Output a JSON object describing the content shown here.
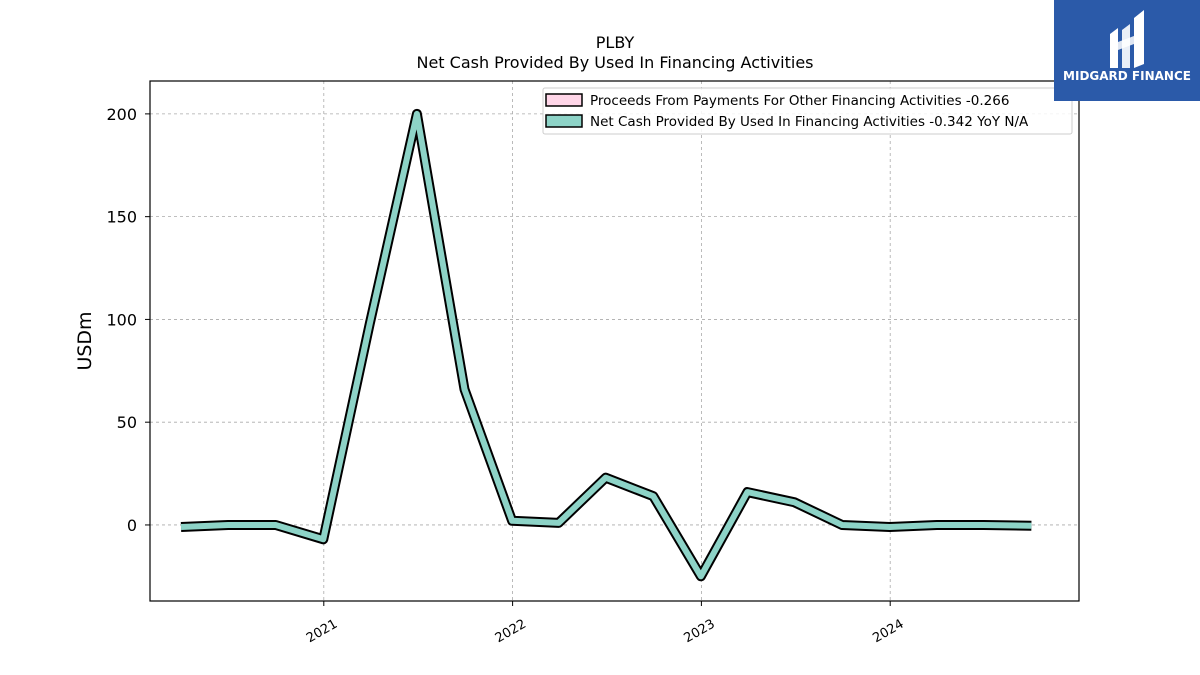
{
  "header": {
    "ticker": "PLBY",
    "subtitle": "Net Cash Provided By Used In Financing Activities"
  },
  "logo": {
    "text": "MIDGARD FINANCE",
    "bg_color": "#2b5aa9"
  },
  "chart_data": {
    "type": "line",
    "title": "PLBY",
    "subtitle": "Net Cash Provided By Used In Financing Activities",
    "xlabel": "",
    "ylabel": "USDm",
    "ylim": [
      -37,
      216
    ],
    "yticks": [
      0,
      50,
      100,
      150,
      200
    ],
    "xticks": [
      "2021",
      "2022",
      "2023",
      "2024"
    ],
    "grid": true,
    "legend_position": "top-right",
    "series": [
      {
        "name": "Proceeds From Payments For Other Financing Activities",
        "legend_label": "Proceeds From Payments For Other Financing Activities  -0.266",
        "color": "#ffd6e8",
        "x": [],
        "values": []
      },
      {
        "name": "Net Cash Provided By Used In Financing Activities",
        "legend_label": "Net Cash Provided By Used In Financing Activities  -0.342 YoY N/A",
        "color": "#8dd3c7",
        "x": [
          "2020-03-31",
          "2020-06-30",
          "2020-09-30",
          "2020-12-31",
          "2021-03-31",
          "2021-06-30",
          "2021-09-30",
          "2021-12-31",
          "2022-03-31",
          "2022-06-30",
          "2022-09-30",
          "2022-12-31",
          "2023-03-31",
          "2023-06-30",
          "2023-09-30",
          "2023-12-31",
          "2024-03-31",
          "2024-06-30",
          "2024-09-30"
        ],
        "values": [
          -1,
          0,
          0,
          -7,
          98,
          200,
          66,
          2,
          1,
          23,
          14,
          -25,
          16,
          11,
          0,
          -1,
          0,
          0,
          -0.342
        ]
      }
    ]
  }
}
